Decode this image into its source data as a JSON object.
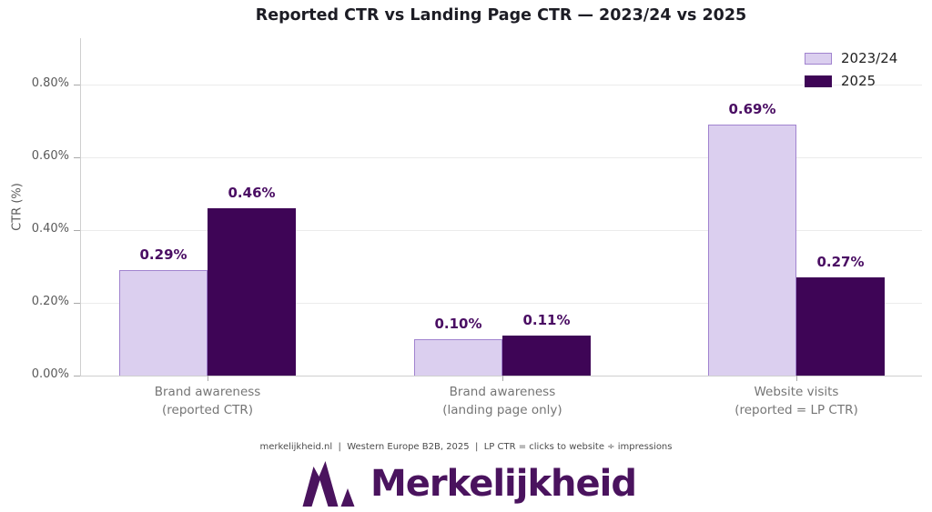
{
  "title": "Reported CTR vs Landing Page CTR — 2023/24 vs 2025",
  "chart_data": {
    "type": "bar",
    "title": "Reported CTR vs Landing Page CTR — 2023/24 vs 2025",
    "xlabel": "",
    "ylabel": "CTR (%)",
    "ylim": [
      0,
      0.93
    ],
    "unit": "%",
    "grid": "horizontal",
    "legend_position": "upper-right",
    "categories": [
      {
        "line1": "Brand awareness",
        "line2": "(reported CTR)"
      },
      {
        "line1": "Brand awareness",
        "line2": "(landing page only)"
      },
      {
        "line1": "Website visits",
        "line2": "(reported = LP CTR)"
      }
    ],
    "yticks": [
      {
        "value": 0.0,
        "label": "0.00%"
      },
      {
        "value": 0.2,
        "label": "0.20%"
      },
      {
        "value": 0.4,
        "label": "0.40%"
      },
      {
        "value": 0.6,
        "label": "0.60%"
      },
      {
        "value": 0.8,
        "label": "0.80%"
      }
    ],
    "series": [
      {
        "name": "2023/24",
        "color": "#dbcfef",
        "border": "#a183cf",
        "values": [
          0.29,
          0.1,
          0.69
        ],
        "labels": [
          "0.29%",
          "0.10%",
          "0.69%"
        ]
      },
      {
        "name": "2025",
        "color": "#3e0556",
        "border": "#3e0556",
        "values": [
          0.46,
          0.11,
          0.27
        ],
        "labels": [
          "0.46%",
          "0.11%",
          "0.27%"
        ]
      }
    ]
  },
  "footer": {
    "text": "merkelijkheid.nl  |  Western Europe B2B, 2025  |  LP CTR = clicks to website ÷ impressions"
  },
  "logo": {
    "text": "Merkelijkheid",
    "color": "#4a135e",
    "icon": "merkelijkheid-mountain-m-icon"
  },
  "colors": {
    "title": "#1c1c24",
    "data_label": "#4a0d63",
    "axis_text": "#5a5a5a",
    "category_text": "#757575",
    "gridline": "#ebebeb",
    "spine": "#cfcfcf",
    "background": "#ffffff"
  }
}
